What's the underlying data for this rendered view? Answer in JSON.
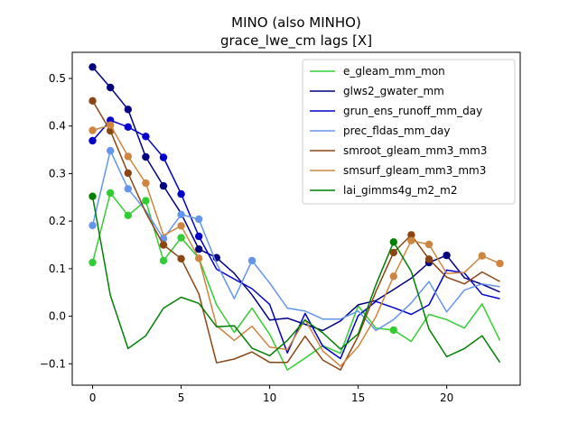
{
  "chart_data": {
    "type": "line",
    "title": "MINO (also MINHO)",
    "subtitle": "grace_lwe_cm lags [X]",
    "xlabel": "",
    "ylabel": "",
    "xlim": [
      -1.15,
      24.15
    ],
    "ylim": [
      -0.145,
      0.555
    ],
    "xticks": [
      0,
      5,
      10,
      15,
      20
    ],
    "yticks": [
      -0.1,
      0.0,
      0.1,
      0.2,
      0.3,
      0.4,
      0.5
    ],
    "ytick_labels": [
      "−0.1",
      "0.0",
      "0.1",
      "0.2",
      "0.3",
      "0.4",
      "0.5"
    ],
    "legend_position": "top-right",
    "x": [
      0,
      1,
      2,
      3,
      4,
      5,
      6,
      7,
      8,
      9,
      10,
      11,
      12,
      13,
      14,
      15,
      16,
      17,
      18,
      19,
      20,
      21,
      22,
      23
    ],
    "series": [
      {
        "name": "e_gleam_mm_mon",
        "color": "#32cd32",
        "values": [
          0.113,
          0.259,
          0.212,
          0.243,
          0.117,
          0.165,
          0.122,
          0.024,
          -0.034,
          0.017,
          -0.038,
          -0.113,
          -0.088,
          -0.062,
          -0.078,
          0.022,
          -0.025,
          -0.029,
          -0.053,
          0.004,
          -0.007,
          -0.025,
          0.026,
          -0.051
        ],
        "markers": [
          0,
          1,
          2,
          3,
          4,
          5,
          17
        ]
      },
      {
        "name": "glws2_gwater_mm",
        "color": "#000080",
        "values": [
          0.524,
          0.481,
          0.435,
          0.335,
          0.274,
          0.216,
          0.141,
          0.123,
          0.09,
          0.045,
          -0.008,
          -0.004,
          -0.017,
          -0.03,
          -0.01,
          0.024,
          0.033,
          0.056,
          0.08,
          0.113,
          0.128,
          0.081,
          0.067,
          0.051
        ],
        "markers": [
          0,
          1,
          2,
          3,
          4,
          6,
          7,
          19,
          20
        ]
      },
      {
        "name": "grun_ens_runoff_mm_day",
        "color": "#0000cd",
        "values": [
          0.369,
          0.412,
          0.398,
          0.378,
          0.334,
          0.257,
          0.168,
          0.099,
          0.078,
          0.058,
          0.025,
          -0.077,
          0.006,
          -0.063,
          -0.089,
          0.001,
          0.031,
          0.018,
          0.004,
          0.024,
          0.097,
          0.091,
          0.046,
          0.037
        ],
        "markers": [
          0,
          1,
          2,
          3,
          4,
          5,
          6
        ]
      },
      {
        "name": "prec_fldas_mm_day",
        "color": "#6495ed",
        "values": [
          0.191,
          0.348,
          0.268,
          0.222,
          0.163,
          0.214,
          0.204,
          0.111,
          0.037,
          0.117,
          0.07,
          0.017,
          0.011,
          -0.006,
          -0.006,
          0.011,
          -0.03,
          -0.007,
          0.028,
          0.073,
          0.009,
          0.055,
          0.068,
          0.062
        ],
        "markers": [
          0,
          1,
          2,
          4,
          5,
          6,
          9
        ]
      },
      {
        "name": "smroot_gleam_mm3_mm3",
        "color": "#8b4513",
        "values": [
          0.453,
          0.39,
          0.301,
          0.218,
          0.15,
          0.121,
          0.047,
          -0.098,
          -0.09,
          -0.075,
          -0.097,
          -0.097,
          -0.042,
          -0.092,
          -0.113,
          -0.042,
          0.052,
          0.134,
          0.171,
          0.12,
          0.082,
          0.068,
          0.093,
          0.073
        ],
        "markers": [
          0,
          1,
          2,
          4,
          5,
          17,
          18,
          19
        ]
      },
      {
        "name": "smsurf_gleam_mm3_mm3",
        "color": "#cd853f",
        "values": [
          0.391,
          0.402,
          0.336,
          0.28,
          0.17,
          0.19,
          0.122,
          -0.02,
          -0.051,
          -0.021,
          -0.065,
          -0.07,
          -0.007,
          -0.073,
          -0.105,
          -0.064,
          -0.001,
          0.084,
          0.159,
          0.151,
          0.09,
          0.092,
          0.127,
          0.111
        ],
        "markers": [
          0,
          1,
          2,
          3,
          5,
          6,
          17,
          18,
          19,
          22,
          23
        ]
      },
      {
        "name": "lai_gimms4g_m2_m2",
        "color": "#008000",
        "values": [
          0.252,
          0.044,
          -0.068,
          -0.041,
          0.017,
          0.04,
          0.027,
          -0.022,
          -0.02,
          -0.067,
          -0.083,
          -0.051,
          -0.008,
          -0.035,
          -0.069,
          -0.037,
          0.066,
          0.156,
          0.094,
          -0.027,
          -0.085,
          -0.068,
          -0.041,
          -0.097
        ],
        "markers": [
          0,
          17
        ]
      }
    ]
  }
}
